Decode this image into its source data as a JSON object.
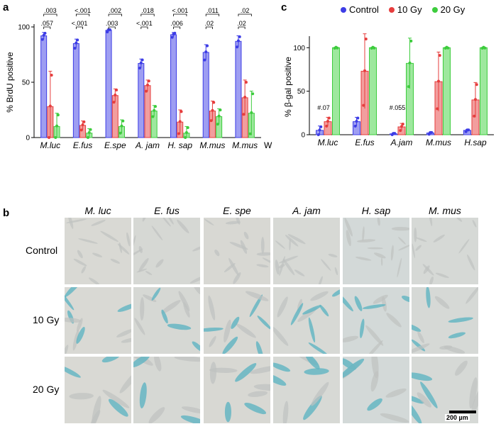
{
  "panel_letters": {
    "a": "a",
    "b": "b",
    "c": "c"
  },
  "colors": {
    "control": "#3d3de6",
    "gy10": "#e63d3d",
    "gy20": "#3dcc3d",
    "control_fill": "#9e9ef2",
    "gy10_fill": "#f29e9e",
    "gy20_fill": "#9ee89e"
  },
  "chart_data": [
    {
      "type": "bar",
      "ylabel": "% BrdU positive",
      "ylim": [
        0,
        100
      ],
      "yticks": [
        "0",
        "50",
        "100"
      ],
      "categories": [
        "M.luc",
        "E.fus",
        "E.spe",
        "A. jam",
        "H. sap",
        "M.mus",
        "M.mus"
      ],
      "category_suffix": "W",
      "series": [
        {
          "name": "Control",
          "values": [
            92,
            85,
            97,
            67,
            93,
            77,
            87
          ],
          "err": [
            3,
            4,
            1,
            4,
            2,
            7,
            5
          ]
        },
        {
          "name": "10 Gy",
          "values": [
            28,
            11,
            38,
            47,
            14,
            24,
            36
          ],
          "err": [
            32,
            4,
            6,
            5,
            11,
            9,
            16
          ]
        },
        {
          "name": "20 Gy",
          "values": [
            10,
            4,
            10,
            24,
            4,
            19,
            22
          ],
          "err": [
            12,
            4,
            6,
            5,
            6,
            7,
            20
          ]
        }
      ],
      "significance": [
        {
          "cat": 0,
          "low": ".057",
          "high": ".003"
        },
        {
          "cat": 1,
          "low": "<.001",
          "high": "<.001"
        },
        {
          "cat": 2,
          "low": ".003",
          "high": ".002"
        },
        {
          "cat": 3,
          "low": "<.001",
          "high": ".018"
        },
        {
          "cat": 4,
          "low": ".006",
          "high": "<.001"
        },
        {
          "cat": 5,
          "low": ".02",
          "high": ".011"
        },
        {
          "cat": 6,
          "low": ".02",
          "high": ".02"
        }
      ]
    },
    {
      "type": "bar",
      "ylabel": "% β-gal positive",
      "ylim": [
        0,
        110
      ],
      "yticks": [
        "0",
        "50",
        "100"
      ],
      "categories": [
        "M.luc",
        "E.fus",
        "A.jam",
        "M.mus",
        "H.sap"
      ],
      "legend": [
        "Control",
        "10 Gy",
        "20 Gy"
      ],
      "legend_position": "top",
      "series": [
        {
          "name": "Control",
          "values": [
            5,
            15,
            1,
            2,
            5
          ],
          "err": [
            5,
            5,
            1,
            1,
            1
          ]
        },
        {
          "name": "10 Gy",
          "values": [
            15,
            73,
            9,
            61,
            40
          ],
          "err": [
            5,
            43,
            4,
            34,
            20
          ]
        },
        {
          "name": "20 Gy",
          "values": [
            100,
            100,
            82,
            100,
            100
          ],
          "err": [
            0,
            0,
            29,
            0,
            0
          ]
        }
      ],
      "annotations": [
        {
          "cat": 0,
          "text": "#.07"
        },
        {
          "cat": 2,
          "text": "#.055"
        }
      ]
    }
  ],
  "micrographs": {
    "columns": [
      "M. luc",
      "E. fus",
      "E. spe",
      "A. jam",
      "H. sap",
      "M. mus"
    ],
    "rows": [
      "Control",
      "10 Gy",
      "20 Gy"
    ],
    "scale_bar": "200 µm"
  }
}
